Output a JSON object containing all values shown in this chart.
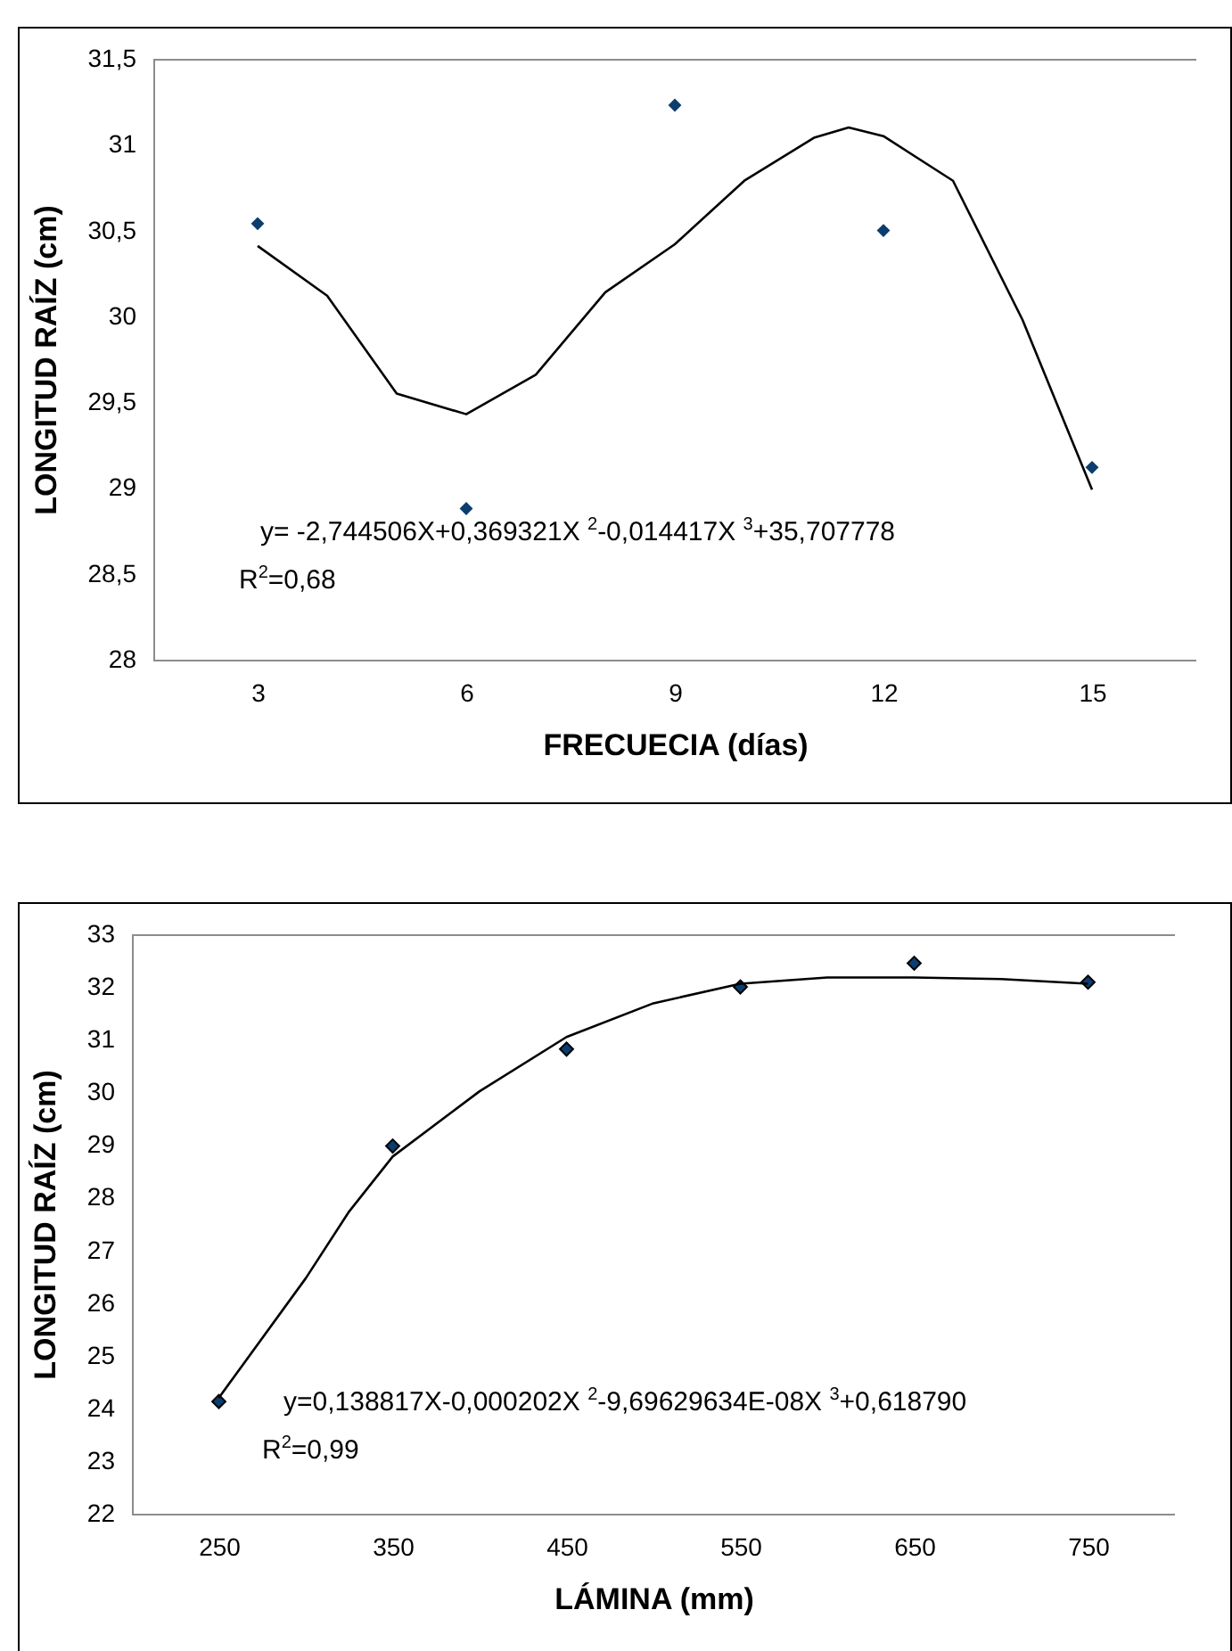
{
  "chart_data": [
    {
      "type": "scatter",
      "xlabel": "FRECUECIA (días)",
      "ylabel": "LONGITUD RAÍZ (cm)",
      "xlim": [
        1.5,
        16.5
      ],
      "xticks": [
        3,
        6,
        9,
        12,
        15
      ],
      "ylim": [
        28,
        31.5
      ],
      "yticks": [
        28,
        {
          "value": 28.5,
          "label": "28,5"
        },
        29,
        {
          "value": 29.5,
          "label": "29,5"
        },
        30,
        {
          "value": 30.5,
          "label": "30,5"
        },
        31,
        {
          "value": 31.5,
          "label": "31,5"
        }
      ],
      "marker": "diamond",
      "annotations": [
        "y= -2,744506X+0,369321X $^{2}$-0,014417X $^{3}$+35,707778",
        "R$^{2}$=0,68"
      ],
      "series": [
        {
          "type": "scatter",
          "color": "#0b3d6e",
          "x": [
            3,
            6,
            9,
            12,
            15
          ],
          "values": [
            30.54,
            28.88,
            31.23,
            30.5,
            29.12
          ]
        },
        {
          "type": "line",
          "marker": "none",
          "color": "#000000",
          "x": [
            3,
            4,
            5,
            6,
            7,
            8,
            9,
            10,
            11,
            11.5,
            12,
            13,
            14,
            15
          ],
          "values": [
            30.41,
            30.12,
            29.55,
            29.43,
            29.66,
            30.14,
            30.42,
            30.79,
            31.04,
            31.1,
            31.05,
            30.79,
            29.98,
            28.99
          ]
        }
      ]
    },
    {
      "type": "scatter",
      "xlabel": "LÁMINA (mm)",
      "ylabel": "LONGITUD RAÍZ (cm)",
      "xlim": [
        200,
        800
      ],
      "xticks": [
        250,
        350,
        450,
        550,
        650,
        750
      ],
      "ylim": [
        22,
        33
      ],
      "yticks": [
        22,
        23,
        24,
        25,
        26,
        27,
        28,
        29,
        30,
        31,
        32,
        33
      ],
      "marker": "diamond",
      "annotations": [
        "y=0,138817X-0,000202X $^{2}$-9,69629634E-08X $^{3}$+0,618790",
        "R$^{2}$=0,99"
      ],
      "series": [
        {
          "type": "scatter",
          "color": "#0b3d6e",
          "x": [
            250,
            350,
            450,
            550,
            650,
            750
          ],
          "values": [
            24.13,
            28.98,
            30.82,
            32.0,
            32.45,
            32.09
          ]
        },
        {
          "type": "line",
          "marker": "none",
          "color": "#000000",
          "x": [
            250,
            300,
            325,
            350,
            400,
            450,
            500,
            550,
            600,
            650,
            700,
            750
          ],
          "values": [
            24.2,
            26.47,
            27.74,
            28.78,
            30.02,
            31.05,
            31.69,
            32.06,
            32.18,
            32.18,
            32.15,
            32.06
          ]
        }
      ]
    }
  ]
}
